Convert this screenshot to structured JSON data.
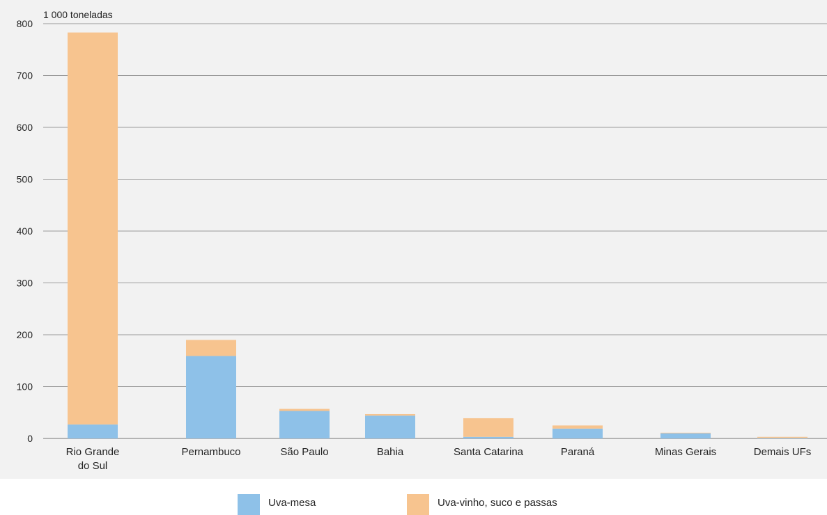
{
  "chart_data": {
    "type": "bar",
    "stacked": true,
    "unit_label": "1 000 toneladas",
    "categories": [
      "Rio Grande do Sul",
      "Pernambuco",
      "São Paulo",
      "Bahia",
      "Santa Catarina",
      "Paraná",
      "Minas Gerais",
      "Demais UFs"
    ],
    "category_lines": [
      [
        "Rio Grande",
        "do Sul"
      ],
      [
        "Pernambuco"
      ],
      [
        "São Paulo"
      ],
      [
        "Bahia"
      ],
      [
        "Santa Catarina"
      ],
      [
        "Paraná"
      ],
      [
        "Minas Gerais"
      ],
      [
        "Demais UFs"
      ]
    ],
    "series": [
      {
        "name": "Uva-mesa",
        "values": [
          27,
          159,
          53,
          44,
          3,
          19,
          10,
          1
        ],
        "color": "#8ec1e8"
      },
      {
        "name": "Uva-vinho, suco e passas",
        "values": [
          756,
          31,
          4,
          3,
          36,
          6,
          1,
          2
        ],
        "color": "#f7c48f"
      }
    ],
    "ylim": [
      0,
      800
    ],
    "yticks": [
      0,
      100,
      200,
      300,
      400,
      500,
      600,
      700,
      800
    ],
    "grid": true,
    "legend_position": "bottom"
  },
  "colors": {
    "plot_background": "#f2f2f2",
    "grid": "#9a9a9a"
  }
}
